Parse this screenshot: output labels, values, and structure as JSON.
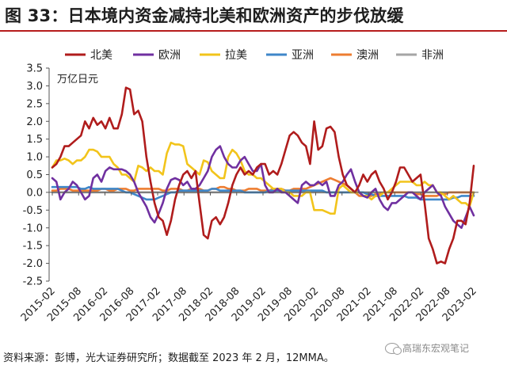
{
  "title": "图 33：日本境内资金减持北美和欧洲资产的步伐放缓",
  "footer": "资料来源：彭博，光大证券研究所；数据截至 2023 年 2 月，12MMA。",
  "watermark": "高瑞东宏观笔记",
  "chart_data": {
    "type": "line",
    "ylabel": "万亿日元",
    "ylim": [
      -2.5,
      3.5
    ],
    "yticks": [
      "3.5",
      "3.0",
      "2.5",
      "2.0",
      "1.5",
      "1.0",
      "0.5",
      "0.0",
      "-0.5",
      "-1.0",
      "-1.5",
      "-2.0",
      "-2.5"
    ],
    "x_start": "2015-02",
    "x_end": "2023-02",
    "xticks": [
      "2015-02",
      "2015-08",
      "2016-02",
      "2016-08",
      "2017-02",
      "2017-08",
      "2018-02",
      "2018-08",
      "2019-02",
      "2019-08",
      "2020-02",
      "2020-08",
      "2021-02",
      "2021-08",
      "2022-02",
      "2022-08",
      "2023-02"
    ],
    "grid": false,
    "legend_position": "top",
    "series": [
      {
        "name": "北美",
        "color": "#b01c1c",
        "values": [
          0.7,
          0.8,
          1.0,
          1.3,
          1.3,
          1.4,
          1.5,
          1.6,
          2.0,
          1.8,
          2.1,
          1.9,
          2.0,
          1.8,
          2.1,
          1.8,
          1.8,
          2.2,
          2.95,
          2.9,
          2.2,
          2.3,
          2.0,
          1.0,
          0.3,
          -0.3,
          -0.7,
          -0.8,
          -1.2,
          -0.8,
          -0.2,
          0.2,
          0.5,
          0.6,
          0.4,
          0.6,
          -0.3,
          -1.2,
          -1.3,
          -0.8,
          -0.7,
          -0.9,
          -0.7,
          -0.3,
          0.2,
          0.5,
          0.7,
          0.5,
          0.6,
          0.5,
          0.7,
          0.8,
          0.8,
          0.5,
          0.6,
          0.5,
          0.8,
          1.2,
          1.6,
          1.7,
          1.6,
          1.4,
          1.3,
          0.8,
          2.0,
          1.2,
          1.3,
          1.8,
          1.85,
          1.7,
          1.0,
          0.5,
          0.2,
          0.1,
          0.0,
          0.2,
          0.5,
          0.3,
          0.5,
          0.6,
          0.3,
          0.1,
          -0.2,
          0.0,
          0.3,
          0.7,
          0.7,
          0.5,
          0.3,
          0.4,
          0.5,
          -0.3,
          -1.3,
          -1.6,
          -2.0,
          -1.95,
          -2.0,
          -1.6,
          -1.3,
          -0.8,
          -0.8,
          -0.9,
          -0.3,
          0.75
        ]
      },
      {
        "name": "欧洲",
        "color": "#7030a0",
        "values": [
          0.4,
          0.3,
          -0.2,
          0.0,
          0.1,
          0.3,
          0.2,
          0.0,
          -0.2,
          -0.1,
          0.4,
          0.5,
          0.3,
          0.6,
          0.7,
          0.65,
          0.65,
          0.65,
          0.6,
          0.5,
          0.3,
          0.0,
          -0.2,
          -0.4,
          -0.7,
          -0.85,
          -0.6,
          -0.3,
          0.1,
          0.35,
          0.4,
          0.35,
          0.2,
          0.3,
          0.1,
          0.1,
          0.2,
          0.4,
          0.6,
          1.0,
          1.2,
          1.3,
          1.0,
          0.8,
          0.7,
          0.7,
          0.9,
          1.0,
          0.8,
          0.6,
          0.6,
          0.8,
          0.2,
          0.0,
          0.0,
          0.1,
          0.0,
          0.0,
          -0.1,
          -0.2,
          -0.3,
          0.2,
          0.3,
          0.2,
          0.2,
          0.3,
          0.2,
          0.3,
          -0.1,
          -0.1,
          0.2,
          0.3,
          0.5,
          0.65,
          0.3,
          0.0,
          -0.1,
          -0.15,
          0.0,
          0.1,
          -0.2,
          -0.4,
          -0.5,
          -0.3,
          -0.3,
          -0.2,
          -0.1,
          0.0,
          0.0,
          -0.1,
          -0.2,
          0.0,
          0.1,
          0.2,
          0.0,
          -0.1,
          -0.4,
          -0.6,
          -0.8,
          -0.9,
          -1.0,
          -0.7,
          -0.4,
          -0.65
        ]
      },
      {
        "name": "拉美",
        "color": "#f2c41b",
        "values": [
          0.7,
          0.9,
          0.9,
          0.95,
          0.9,
          0.8,
          0.9,
          0.9,
          1.0,
          1.2,
          1.2,
          1.15,
          1.0,
          1.0,
          1.0,
          0.8,
          0.7,
          0.5,
          0.5,
          0.4,
          0.3,
          0.75,
          0.7,
          0.6,
          0.7,
          0.6,
          0.6,
          0.5,
          1.1,
          1.4,
          1.35,
          1.35,
          1.3,
          0.8,
          0.7,
          0.6,
          0.5,
          0.9,
          0.85,
          0.6,
          0.5,
          0.4,
          0.4,
          1.0,
          1.2,
          1.1,
          0.9,
          0.6,
          0.5,
          0.5,
          0.4,
          0.4,
          0.3,
          0.2,
          0.1,
          0.1,
          0.1,
          0.0,
          0.0,
          -0.1,
          -0.1,
          -0.1,
          0.0,
          0.0,
          -0.5,
          -0.5,
          -0.5,
          -0.55,
          -0.6,
          -0.6,
          0.1,
          0.2,
          0.1,
          0.0,
          0.0,
          0.0,
          -0.1,
          -0.1,
          -0.2,
          -0.1,
          -0.1,
          0.0,
          0.0,
          0.1,
          0.2,
          0.3,
          0.3,
          0.3,
          0.3,
          0.2,
          0.2,
          0.3,
          0.2,
          0.2,
          0.0,
          0.0,
          -0.1,
          -0.2,
          -0.1,
          -0.2,
          -0.3,
          -0.3,
          -0.4,
          0.0
        ]
      },
      {
        "name": "亚洲",
        "color": "#3f87c9",
        "values": [
          0.15,
          0.15,
          0.15,
          0.15,
          0.15,
          0.15,
          0.15,
          0.1,
          0.1,
          0.15,
          0.1,
          0.1,
          0.1,
          0.1,
          0.1,
          0.1,
          0.1,
          0.05,
          0.0,
          0.0,
          -0.05,
          -0.1,
          -0.15,
          -0.2,
          -0.2,
          -0.2,
          -0.15,
          -0.1,
          -0.05,
          0.0,
          0.0,
          0.05,
          0.05,
          0.05,
          0.05,
          0.05,
          0.05,
          0.05,
          0.05,
          0.1,
          0.1,
          0.05,
          0.05,
          0.05,
          0.05,
          0.05,
          0.05,
          0.0,
          0.0,
          0.0,
          0.0,
          0.0,
          0.0,
          0.05,
          0.05,
          0.05,
          0.05,
          0.05,
          0.05,
          0.05,
          0.05,
          0.05,
          0.05,
          0.05,
          0.05,
          0.05,
          0.05,
          0.0,
          0.0,
          0.0,
          0.0,
          0.0,
          0.0,
          0.0,
          0.0,
          0.0,
          0.0,
          -0.05,
          -0.05,
          -0.1,
          -0.1,
          -0.1,
          -0.1,
          -0.1,
          -0.1,
          -0.1,
          -0.1,
          -0.15,
          -0.15,
          -0.15,
          -0.2,
          -0.2,
          -0.2,
          -0.2,
          -0.2,
          -0.2,
          -0.2,
          -0.2,
          -0.15,
          -0.15,
          -0.1,
          -0.1,
          -0.1,
          -0.1
        ]
      },
      {
        "name": "澳洲",
        "color": "#ed7d31",
        "values": [
          0.05,
          0.05,
          0.1,
          0.1,
          0.1,
          0.05,
          0.05,
          0.05,
          0.05,
          0.05,
          0.05,
          0.05,
          0.1,
          0.1,
          0.05,
          0.05,
          0.1,
          0.1,
          0.1,
          0.05,
          0.05,
          0.1,
          0.1,
          0.1,
          0.1,
          0.1,
          0.1,
          0.05,
          0.05,
          0.1,
          0.1,
          0.1,
          0.05,
          0.05,
          0.1,
          0.1,
          0.1,
          0.05,
          0.05,
          0.1,
          0.1,
          0.15,
          0.15,
          0.1,
          0.1,
          0.05,
          0.05,
          0.05,
          0.1,
          0.1,
          0.1,
          0.05,
          0.05,
          0.05,
          0.1,
          0.1,
          0.1,
          0.05,
          0.05,
          0.1,
          0.1,
          0.1,
          0.1,
          0.15,
          0.2,
          0.25,
          0.3,
          0.35,
          0.4,
          0.35,
          0.3,
          0.25,
          0.2,
          0.1,
          0.0,
          -0.1,
          -0.1,
          -0.1,
          -0.1,
          -0.05,
          -0.05,
          0.0,
          0.0,
          0.0,
          0.0,
          0.0,
          0.0,
          0.0,
          0.0,
          -0.05,
          -0.05,
          -0.1,
          -0.1,
          -0.1,
          -0.1,
          -0.05,
          -0.05,
          0.0,
          0.0,
          0.0,
          0.0,
          0.0,
          0.0,
          0.0
        ]
      },
      {
        "name": "非洲",
        "color": "#a5a5a5",
        "values": [
          0.0,
          0.0,
          0.0,
          0.0,
          0.0,
          0.0,
          0.0,
          0.0,
          0.0,
          0.0,
          0.0,
          0.0,
          0.0,
          0.0,
          0.0,
          0.0,
          0.0,
          0.0,
          0.0,
          0.0,
          0.0,
          0.0,
          0.0,
          0.0,
          0.0,
          0.0,
          0.0,
          0.0,
          0.0,
          0.0,
          0.0,
          0.0,
          0.0,
          0.0,
          0.0,
          0.0,
          0.0,
          0.0,
          0.0,
          0.0,
          0.0,
          0.0,
          0.0,
          0.0,
          0.0,
          0.0,
          0.0,
          0.0,
          0.0,
          0.0,
          0.0,
          0.0,
          0.0,
          0.0,
          0.0,
          0.0,
          0.0,
          0.0,
          0.0,
          0.0,
          0.0,
          0.0,
          0.0,
          0.0,
          0.0,
          0.0,
          0.0,
          0.0,
          0.0,
          0.0,
          0.0,
          0.0,
          0.0,
          0.0,
          0.0,
          0.0,
          0.0,
          0.0,
          0.0,
          0.0,
          0.0,
          0.0,
          0.0,
          0.0,
          0.0,
          0.0,
          0.0,
          0.0,
          0.0,
          0.0,
          0.0,
          0.0,
          0.0,
          0.0,
          0.0,
          0.0,
          0.0,
          0.0,
          0.0,
          0.0,
          0.0,
          0.0,
          0.0,
          0.0
        ]
      }
    ]
  }
}
